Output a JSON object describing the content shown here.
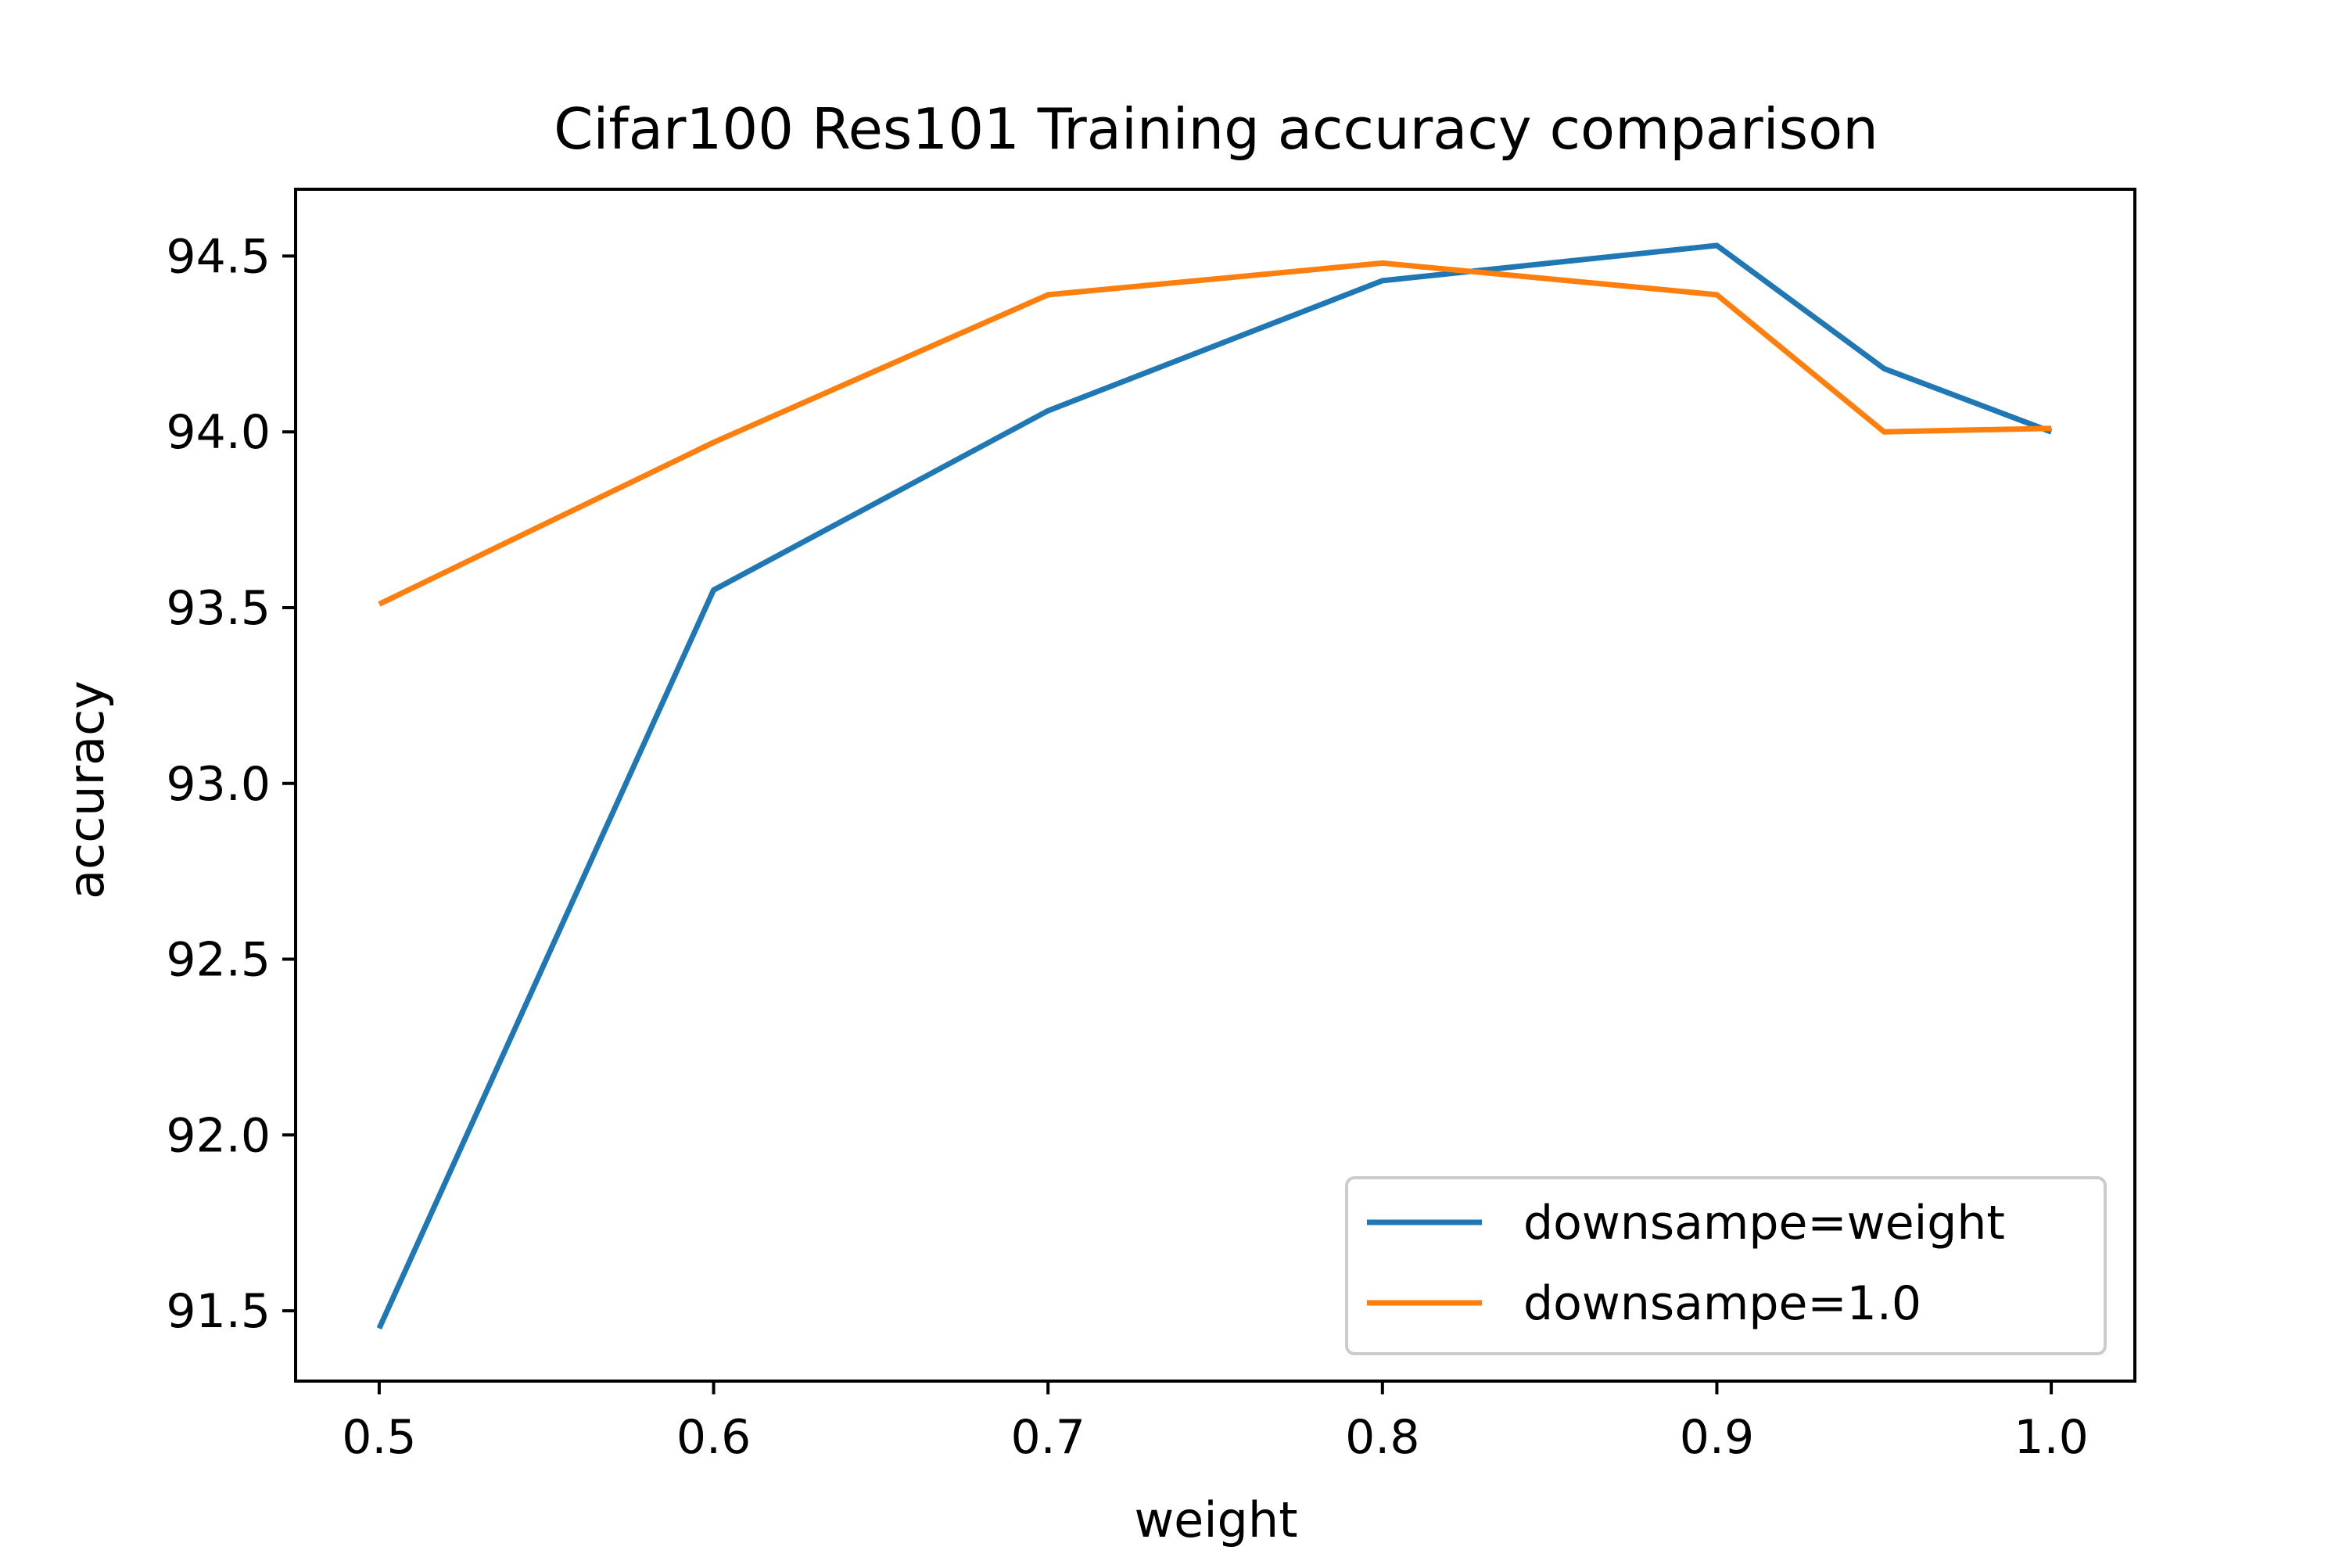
{
  "chart_data": {
    "type": "line",
    "title": "Cifar100 Res101 Training accuracy comparison",
    "xlabel": "weight",
    "ylabel": "accuracy",
    "xlim": [
      0.475,
      1.025
    ],
    "ylim": [
      91.3,
      94.69
    ],
    "xticks": [
      0.5,
      0.6,
      0.7,
      0.8,
      0.9,
      1.0
    ],
    "xtick_labels": [
      "0.5",
      "0.6",
      "0.7",
      "0.8",
      "0.9",
      "1.0"
    ],
    "yticks": [
      91.5,
      92.0,
      92.5,
      93.0,
      93.5,
      94.0,
      94.5
    ],
    "ytick_labels": [
      "91.5",
      "92.0",
      "92.5",
      "93.0",
      "93.5",
      "94.0",
      "94.5"
    ],
    "grid": false,
    "legend_position": "lower-right",
    "series": [
      {
        "name": "downsampe=weight",
        "color": "#1f77b4",
        "x": [
          0.5,
          0.6,
          0.7,
          0.8,
          0.9,
          0.95,
          1.0
        ],
        "y": [
          91.45,
          93.55,
          94.06,
          94.43,
          94.53,
          94.18,
          94.0
        ]
      },
      {
        "name": "downsampe=1.0",
        "color": "#ff7f0e",
        "x": [
          0.5,
          0.6,
          0.7,
          0.8,
          0.9,
          0.95,
          1.0
        ],
        "y": [
          93.51,
          93.97,
          94.39,
          94.48,
          94.39,
          94.0,
          94.01
        ]
      }
    ]
  }
}
